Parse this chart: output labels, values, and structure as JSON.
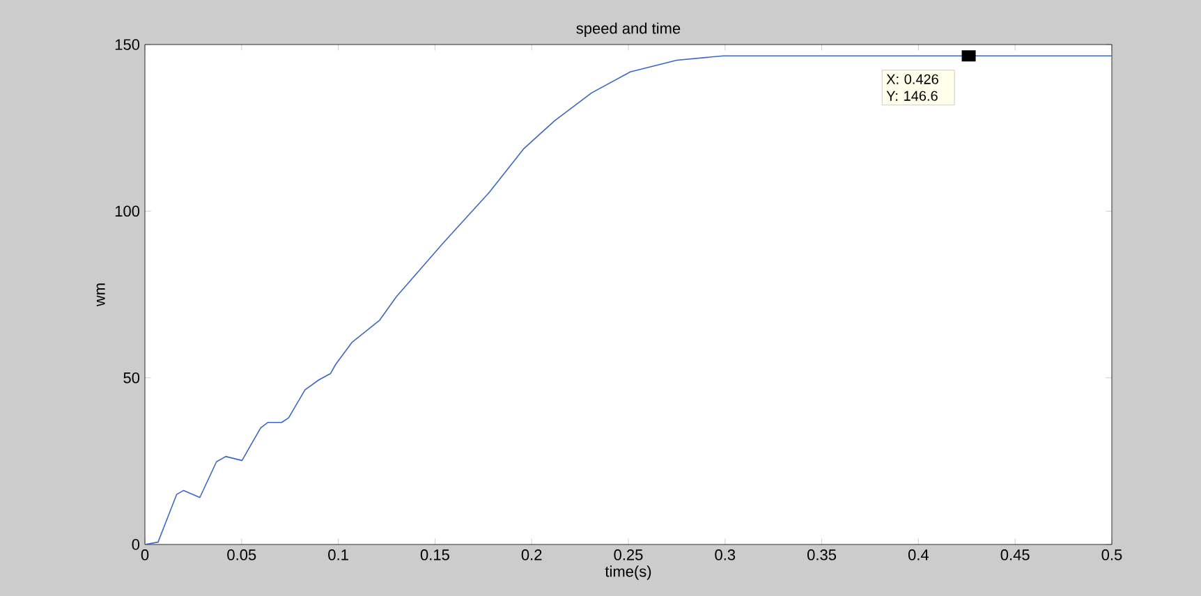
{
  "chart_data": {
    "type": "line",
    "title": "speed  and time",
    "xlabel": "time(s)",
    "ylabel": "wm",
    "xlim": [
      0,
      0.5
    ],
    "ylim": [
      0,
      150
    ],
    "xticks": [
      0,
      0.05,
      0.1,
      0.15,
      0.2,
      0.25,
      0.3,
      0.35,
      0.4,
      0.45,
      0.5
    ],
    "yticks": [
      0,
      50,
      100,
      150
    ],
    "series": [
      {
        "color": "#3a66c4",
        "x": [
          0,
          0.0068,
          0.0164,
          0.02,
          0.0284,
          0.037,
          0.0418,
          0.0502,
          0.0599,
          0.0635,
          0.0707,
          0.0743,
          0.0828,
          0.09,
          0.096,
          0.0986,
          0.107,
          0.1214,
          0.13,
          0.154,
          0.178,
          0.196,
          0.212,
          0.231,
          0.251,
          0.275,
          0.299,
          0.35,
          0.4,
          0.45,
          0.5
        ],
        "values": [
          0,
          0.7,
          15,
          16.2,
          14.1,
          24.8,
          26.4,
          25.2,
          35,
          36.6,
          36.6,
          38,
          46.4,
          49.4,
          51.3,
          54,
          60.6,
          67.3,
          74.3,
          90.3,
          105.6,
          118.8,
          127.2,
          135.5,
          141.8,
          145.3,
          146.6,
          146.6,
          146.6,
          146.6,
          146.6
        ]
      }
    ],
    "annotations": [
      {
        "text": "X: 0.426 Y: 146.6",
        "x": 0.426,
        "y": 146.6
      }
    ]
  }
}
